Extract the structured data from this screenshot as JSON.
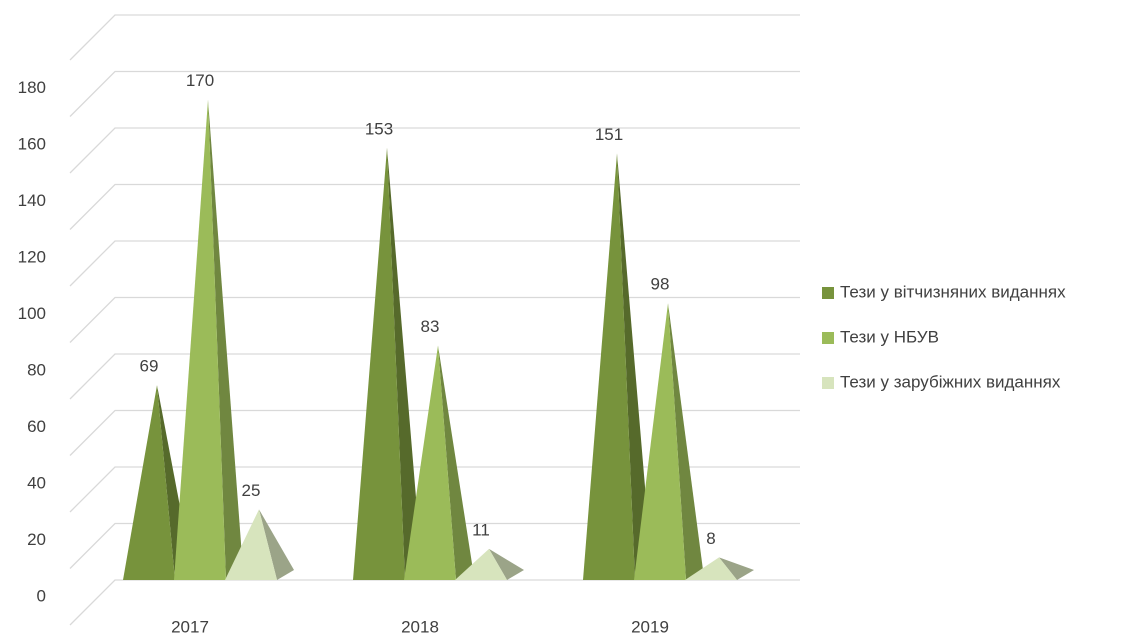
{
  "chart_data": {
    "type": "pyramid",
    "categories": [
      "2017",
      "2018",
      "2019"
    ],
    "series": [
      {
        "name": "Тези у вітчизняних виданнях",
        "color": "#77933c",
        "values": [
          69,
          153,
          151
        ]
      },
      {
        "name": "Тези у НБУВ",
        "color": "#9bbb59",
        "values": [
          170,
          83,
          98
        ]
      },
      {
        "name": "Тези у зарубіжних виданнях",
        "color": "#d7e4bd",
        "values": [
          25,
          11,
          8
        ]
      }
    ],
    "ylim": [
      0,
      200
    ],
    "yticks": [
      0,
      20,
      40,
      60,
      80,
      100,
      120,
      140,
      160,
      180
    ],
    "grid": true,
    "legend": "right"
  }
}
